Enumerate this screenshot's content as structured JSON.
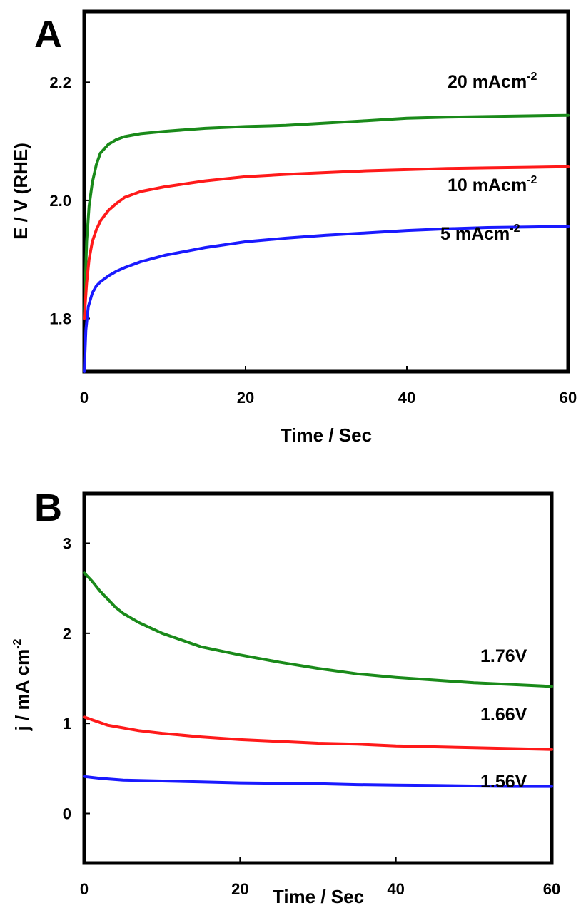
{
  "chart_data": [
    {
      "panel": "A",
      "type": "line",
      "xlabel": "Time / Sec",
      "ylabel": "E / V (RHE)",
      "xlim": [
        0,
        60
      ],
      "ylim": [
        1.71,
        2.32
      ],
      "xticks": [
        "0",
        "20",
        "40",
        "60"
      ],
      "yticks": [
        "1.8",
        "2.0",
        "2.2"
      ],
      "series": [
        {
          "name": "20 mAcm-2",
          "label_main": "20 mAcm",
          "label_sup": "-2",
          "color": "#1a8a1a",
          "x": [
            0,
            0.3,
            0.6,
            1,
            1.5,
            2,
            3,
            4,
            5,
            7,
            10,
            15,
            20,
            25,
            30,
            35,
            40,
            45,
            50,
            55,
            60
          ],
          "y": [
            1.8,
            1.93,
            1.99,
            2.03,
            2.06,
            2.08,
            2.095,
            2.103,
            2.108,
            2.113,
            2.117,
            2.122,
            2.125,
            2.127,
            2.131,
            2.135,
            2.139,
            2.141,
            2.142,
            2.143,
            2.144
          ]
        },
        {
          "name": "10 mAcm-2",
          "label_main": "10 mAcm",
          "label_sup": "-2",
          "color": "#ff1a1a",
          "x": [
            0,
            0.3,
            0.6,
            1,
            1.5,
            2,
            3,
            4,
            5,
            7,
            10,
            15,
            20,
            25,
            30,
            35,
            40,
            45,
            50,
            55,
            60
          ],
          "y": [
            1.8,
            1.86,
            1.9,
            1.93,
            1.95,
            1.965,
            1.983,
            1.995,
            2.005,
            2.015,
            2.023,
            2.033,
            2.04,
            2.044,
            2.047,
            2.05,
            2.052,
            2.054,
            2.055,
            2.056,
            2.057
          ]
        },
        {
          "name": "5 mAcm-2",
          "label_main": "5 mAcm",
          "label_sup": "-2",
          "color": "#1a1aff",
          "x": [
            0,
            0.2,
            0.5,
            1,
            1.5,
            2,
            3,
            4,
            5,
            7,
            10,
            15,
            20,
            25,
            30,
            35,
            40,
            45,
            50,
            55,
            60
          ],
          "y": [
            1.71,
            1.78,
            1.82,
            1.843,
            1.855,
            1.862,
            1.872,
            1.88,
            1.886,
            1.896,
            1.907,
            1.92,
            1.93,
            1.936,
            1.941,
            1.945,
            1.949,
            1.952,
            1.954,
            1.955,
            1.956
          ]
        }
      ]
    },
    {
      "panel": "B",
      "type": "line",
      "xlabel": "Time / Sec",
      "ylabel": "j / mA cm",
      "ylabel_sup": "-2",
      "xlim": [
        0,
        60
      ],
      "ylim": [
        -0.55,
        3.55
      ],
      "xticks": [
        "0",
        "20",
        "40",
        "60"
      ],
      "yticks": [
        "0",
        "1",
        "2",
        "3"
      ],
      "series": [
        {
          "name": "1.76V",
          "color": "#1a8a1a",
          "x": [
            0,
            1,
            2,
            3,
            4,
            5,
            7,
            10,
            15,
            20,
            25,
            30,
            35,
            40,
            45,
            50,
            55,
            60
          ],
          "y": [
            2.67,
            2.58,
            2.47,
            2.38,
            2.29,
            2.22,
            2.12,
            2.0,
            1.85,
            1.76,
            1.68,
            1.61,
            1.55,
            1.51,
            1.48,
            1.45,
            1.43,
            1.41
          ]
        },
        {
          "name": "1.66V",
          "color": "#ff1a1a",
          "x": [
            0,
            1,
            2,
            3,
            5,
            7,
            10,
            15,
            20,
            25,
            30,
            35,
            40,
            45,
            50,
            55,
            60
          ],
          "y": [
            1.07,
            1.04,
            1.01,
            0.98,
            0.95,
            0.92,
            0.89,
            0.85,
            0.82,
            0.8,
            0.78,
            0.77,
            0.75,
            0.74,
            0.73,
            0.72,
            0.71
          ]
        },
        {
          "name": "1.56V",
          "color": "#1a1aff",
          "x": [
            0,
            2,
            5,
            10,
            15,
            20,
            25,
            30,
            35,
            40,
            45,
            50,
            55,
            60
          ],
          "y": [
            0.41,
            0.39,
            0.37,
            0.36,
            0.35,
            0.34,
            0.335,
            0.33,
            0.32,
            0.315,
            0.31,
            0.305,
            0.3,
            0.3
          ]
        }
      ]
    }
  ]
}
